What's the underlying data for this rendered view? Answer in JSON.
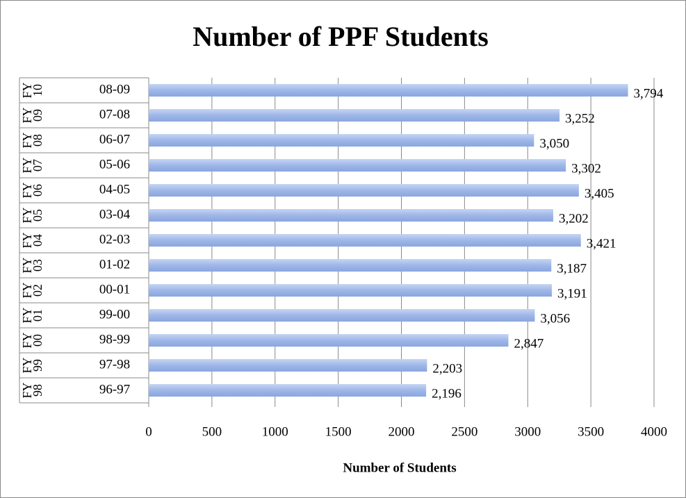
{
  "chart_data": {
    "type": "bar",
    "orientation": "horizontal",
    "title": "Number of PPF Students",
    "x_label": "Number of Students",
    "categories": [
      "08-09",
      "07-08",
      "06-07",
      "05-06",
      "04-05",
      "03-04",
      "02-03",
      "01-02",
      "00-01",
      "99-00",
      "98-99",
      "97-98",
      "96-97"
    ],
    "outer_categories": [
      "FY 10",
      "FY 09",
      "FY 08",
      "FY 07",
      "FY 06",
      "FY 05",
      "FY 04",
      "FY 03",
      "FY 02",
      "FY 01",
      "FY 00",
      "FY 99",
      "FY 98"
    ],
    "values": [
      3794,
      3252,
      3050,
      3302,
      3405,
      3202,
      3421,
      3187,
      3191,
      3056,
      2847,
      2203,
      2196
    ],
    "value_labels": [
      "3,794",
      "3,252",
      "3,050",
      "3,302",
      "3,405",
      "3,202",
      "3,421",
      "3,187",
      "3,191",
      "3,056",
      "2,847",
      "2,203",
      "2,196"
    ],
    "color": "#9fb7e8",
    "xlim": [
      0,
      4000
    ],
    "xticks": [
      0,
      500,
      1000,
      1500,
      2000,
      2500,
      3000,
      3500,
      4000
    ],
    "grid": true
  }
}
